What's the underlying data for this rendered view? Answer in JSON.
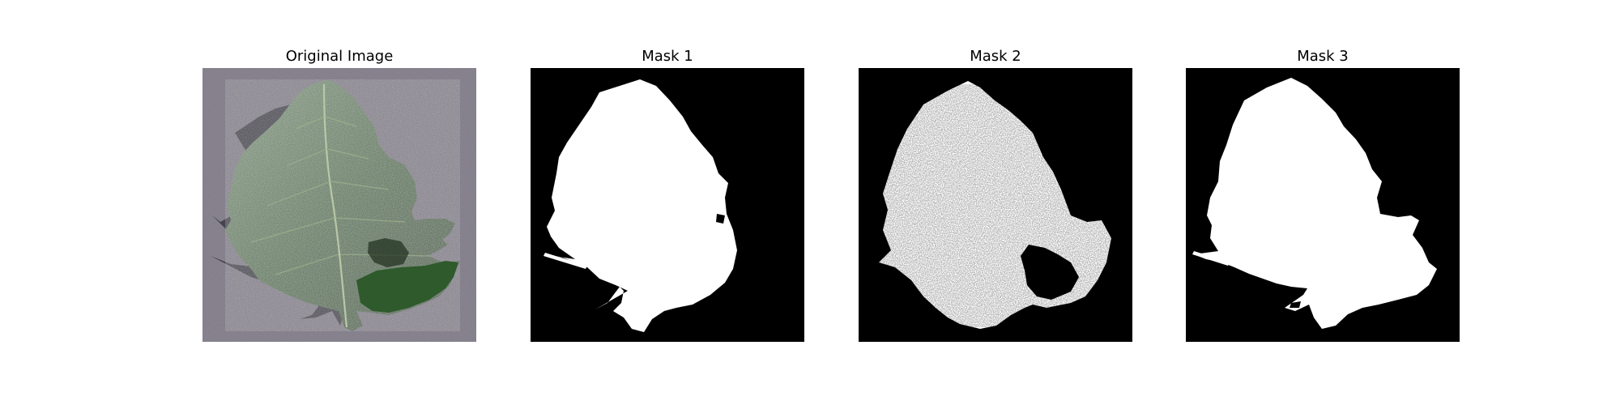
{
  "figure": {
    "panels": [
      {
        "id": "original",
        "title": "Original Image"
      },
      {
        "id": "mask1",
        "title": "Mask 1"
      },
      {
        "id": "mask2",
        "title": "Mask 2"
      },
      {
        "id": "mask3",
        "title": "Mask 3"
      }
    ]
  },
  "colors": {
    "background_gray": "#8f8a97",
    "leaf_dark": "#2d4a2a",
    "leaf_mid": "#4d6c49",
    "leaf_light": "#7e957c",
    "shadow": "#3a3a42",
    "mask_bg": "#000000",
    "mask_fg": "#ffffff"
  }
}
